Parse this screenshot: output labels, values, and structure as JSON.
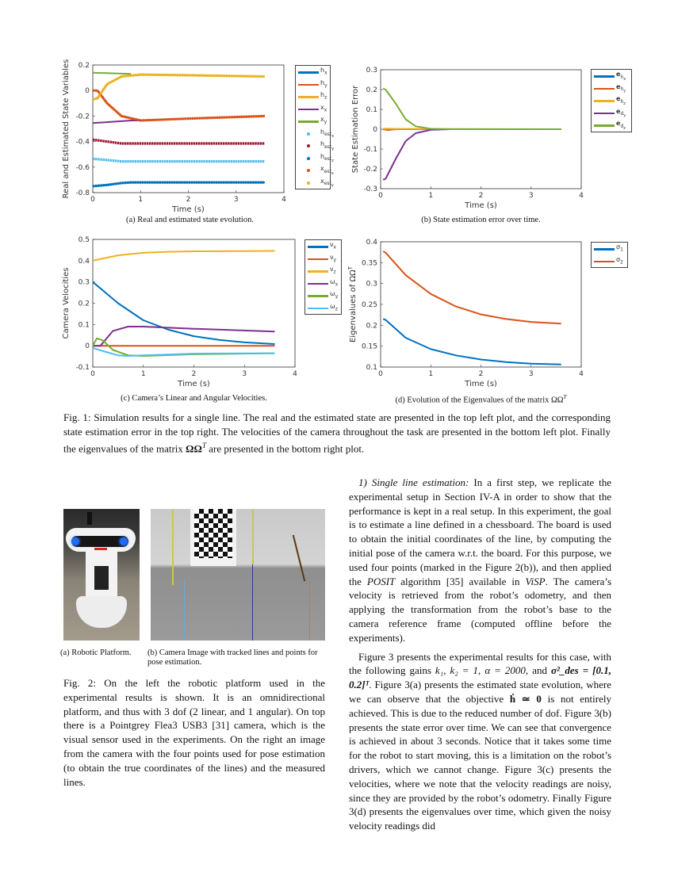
{
  "chart_data": [
    {
      "id": "a",
      "type": "line",
      "xlabel": "Time (s)",
      "ylabel": "Real and Estimated State Variables",
      "xlim": [
        0,
        4
      ],
      "ylim": [
        -0.8,
        0.2
      ],
      "xticks": [
        "0",
        "1",
        "2",
        "3",
        "4"
      ],
      "yticks": [
        "-0.8",
        "-0.6",
        "-0.4",
        "-0.2",
        "0",
        "0.2"
      ],
      "caption": "(a) Real and estimated state evolution.",
      "legend_placement": "outside-right",
      "series": [
        {
          "base": "h",
          "sub": "x",
          "color": "#0072BD",
          "style": "line",
          "points": [
            [
              0,
              -0.75
            ],
            [
              0.3,
              -0.74
            ],
            [
              0.6,
              -0.725
            ],
            [
              0.8,
              -0.72
            ],
            [
              3.6,
              -0.72
            ]
          ]
        },
        {
          "base": "h",
          "sub": "y",
          "color": "#D95319",
          "style": "line",
          "points": [
            [
              0,
              0.0
            ],
            [
              0.1,
              0.0
            ],
            [
              0.3,
              -0.1
            ],
            [
              0.6,
              -0.2
            ],
            [
              1.0,
              -0.235
            ],
            [
              2.0,
              -0.22
            ],
            [
              3.6,
              -0.2
            ]
          ]
        },
        {
          "base": "h",
          "sub": "z",
          "color": "#EDB120",
          "style": "line",
          "points": [
            [
              0,
              -0.07
            ],
            [
              0.1,
              -0.06
            ],
            [
              0.3,
              0.05
            ],
            [
              0.6,
              0.11
            ],
            [
              1.0,
              0.125
            ],
            [
              2.0,
              0.12
            ],
            [
              3.6,
              0.11
            ]
          ]
        },
        {
          "base": "x",
          "sub": "x",
          "color": "#7E2F8E",
          "style": "line",
          "points": [
            [
              0,
              -0.255
            ],
            [
              0.8,
              -0.235
            ],
            [
              1.0,
              -0.235
            ]
          ]
        },
        {
          "base": "x",
          "sub": "y",
          "color": "#77AC30",
          "style": "line",
          "points": [
            [
              0,
              0.14
            ],
            [
              0.8,
              0.13
            ]
          ]
        },
        {
          "base": "h",
          "sub": "est",
          "subsub": "x",
          "color": "#4DBEEE",
          "style": "marker",
          "points": [
            [
              0,
              -0.535
            ],
            [
              0.3,
              -0.545
            ],
            [
              0.6,
              -0.555
            ],
            [
              3.6,
              -0.555
            ]
          ]
        },
        {
          "base": "h",
          "sub": "est",
          "subsub": "y",
          "color": "#A2142F",
          "style": "marker",
          "points": [
            [
              0,
              -0.385
            ],
            [
              0.3,
              -0.4
            ],
            [
              0.6,
              -0.415
            ],
            [
              3.6,
              -0.415
            ]
          ]
        },
        {
          "base": "h",
          "sub": "est",
          "subsub": "z",
          "color": "#0072BD",
          "style": "marker",
          "points": [
            [
              0,
              -0.75
            ],
            [
              0.3,
              -0.74
            ],
            [
              0.6,
              -0.725
            ],
            [
              0.8,
              -0.72
            ],
            [
              3.6,
              -0.72
            ]
          ]
        },
        {
          "base": "x",
          "sub": "est",
          "subsub": "x",
          "color": "#D95319",
          "style": "marker",
          "points": [
            [
              0,
              0.0
            ],
            [
              0.1,
              0.0
            ],
            [
              0.3,
              -0.1
            ],
            [
              0.6,
              -0.2
            ],
            [
              1.0,
              -0.235
            ],
            [
              2.0,
              -0.22
            ],
            [
              3.6,
              -0.2
            ]
          ]
        },
        {
          "base": "x",
          "sub": "est",
          "subsub": "y",
          "color": "#EDB120",
          "style": "marker",
          "points": [
            [
              0,
              -0.07
            ],
            [
              0.1,
              -0.06
            ],
            [
              0.3,
              0.05
            ],
            [
              0.6,
              0.11
            ],
            [
              1.0,
              0.125
            ],
            [
              2.0,
              0.12
            ],
            [
              3.6,
              0.11
            ]
          ]
        }
      ]
    },
    {
      "id": "b",
      "type": "line",
      "xlabel": "Time (s)",
      "ylabel": "State Estimation Error",
      "xlim": [
        0,
        4
      ],
      "ylim": [
        -0.3,
        0.3
      ],
      "xticks": [
        "0",
        "1",
        "2",
        "3",
        "4"
      ],
      "yticks": [
        "-0.3",
        "-0.2",
        "-0.1",
        "0",
        "0.1",
        "0.2",
        "0.3"
      ],
      "caption": "(b) State estimation error over time.",
      "legend_placement": "outside-right",
      "series": [
        {
          "base": "e",
          "sub": "h",
          "subsub": "x",
          "bold": true,
          "color": "#0072BD",
          "style": "line",
          "points": [
            [
              0.05,
              0
            ],
            [
              3.6,
              0
            ]
          ]
        },
        {
          "base": "e",
          "sub": "h",
          "subsub": "y",
          "bold": true,
          "color": "#D95319",
          "style": "line",
          "points": [
            [
              0.05,
              0
            ],
            [
              0.15,
              -0.004
            ],
            [
              0.3,
              0
            ],
            [
              3.6,
              0
            ]
          ]
        },
        {
          "base": "e",
          "sub": "h",
          "subsub": "z",
          "bold": true,
          "color": "#EDB120",
          "style": "line",
          "points": [
            [
              0.05,
              0.003
            ],
            [
              0.3,
              0.002
            ],
            [
              3.6,
              0
            ]
          ]
        },
        {
          "base": "e",
          "sub": "d",
          "subsub": "y",
          "bold": true,
          "color": "#7E2F8E",
          "style": "line",
          "points": [
            [
              0.05,
              -0.255
            ],
            [
              0.1,
              -0.25
            ],
            [
              0.3,
              -0.15
            ],
            [
              0.5,
              -0.06
            ],
            [
              0.7,
              -0.02
            ],
            [
              1.0,
              -0.003
            ],
            [
              1.4,
              0
            ],
            [
              3.6,
              0
            ]
          ]
        },
        {
          "base": "e",
          "sub": "d",
          "subsub": "z",
          "bold": true,
          "color": "#77AC30",
          "style": "line",
          "points": [
            [
              0.05,
              0.205
            ],
            [
              0.1,
              0.2
            ],
            [
              0.3,
              0.13
            ],
            [
              0.5,
              0.05
            ],
            [
              0.7,
              0.015
            ],
            [
              1.0,
              0.002
            ],
            [
              1.4,
              0
            ],
            [
              3.6,
              0
            ]
          ]
        }
      ]
    },
    {
      "id": "c",
      "type": "line",
      "xlabel": "Time (s)",
      "ylabel": "Camera Velocities",
      "xlim": [
        0,
        4
      ],
      "ylim": [
        -0.1,
        0.5
      ],
      "xticks": [
        "0",
        "1",
        "2",
        "3",
        "4"
      ],
      "yticks": [
        "-0.1",
        "0",
        "0.1",
        "0.2",
        "0.3",
        "0.4",
        "0.5"
      ],
      "caption": "(c) Camera’s Linear and Angular Velocities.",
      "legend_placement": "outside-right",
      "series": [
        {
          "base": "ν",
          "sub": "x",
          "color": "#0072BD",
          "style": "line",
          "points": [
            [
              0,
              0.3
            ],
            [
              0.5,
              0.2
            ],
            [
              1.0,
              0.12
            ],
            [
              1.5,
              0.075
            ],
            [
              2.0,
              0.045
            ],
            [
              2.5,
              0.028
            ],
            [
              3.0,
              0.016
            ],
            [
              3.6,
              0.008
            ]
          ]
        },
        {
          "base": "ν",
          "sub": "y",
          "color": "#D95319",
          "style": "line",
          "points": [
            [
              0,
              0
            ],
            [
              3.6,
              0
            ]
          ]
        },
        {
          "base": "ν",
          "sub": "z",
          "color": "#EDB120",
          "style": "line",
          "points": [
            [
              0,
              0.4
            ],
            [
              0.5,
              0.425
            ],
            [
              1.0,
              0.437
            ],
            [
              1.5,
              0.442
            ],
            [
              2.0,
              0.444
            ],
            [
              3.6,
              0.446
            ]
          ]
        },
        {
          "base": "ω",
          "sub": "x",
          "color": "#7E2F8E",
          "style": "line",
          "points": [
            [
              0,
              0
            ],
            [
              0.15,
              0
            ],
            [
              0.4,
              0.07
            ],
            [
              0.7,
              0.09
            ],
            [
              1.0,
              0.09
            ],
            [
              2.0,
              0.08
            ],
            [
              3.6,
              0.067
            ]
          ]
        },
        {
          "base": "ω",
          "sub": "y",
          "color": "#77AC30",
          "style": "line",
          "points": [
            [
              0,
              0
            ],
            [
              0.08,
              0.035
            ],
            [
              0.2,
              0.025
            ],
            [
              0.4,
              -0.02
            ],
            [
              0.7,
              -0.045
            ],
            [
              1.0,
              -0.048
            ],
            [
              2.0,
              -0.04
            ],
            [
              3.6,
              -0.035
            ]
          ]
        },
        {
          "base": "ω",
          "sub": "z",
          "color": "#4DBEEE",
          "style": "line",
          "points": [
            [
              0,
              -0.01
            ],
            [
              0.2,
              -0.025
            ],
            [
              0.5,
              -0.045
            ],
            [
              0.7,
              -0.048
            ],
            [
              1.0,
              -0.045
            ],
            [
              2.0,
              -0.037
            ],
            [
              3.6,
              -0.035
            ]
          ]
        }
      ]
    },
    {
      "id": "d",
      "type": "line",
      "xlabel": "Time (s)",
      "ylabel": "Eigenvalues of ΩΩ",
      "ylabel_sup": "T",
      "xlim": [
        0,
        4
      ],
      "ylim": [
        0.1,
        0.4
      ],
      "xticks": [
        "0",
        "1",
        "2",
        "3",
        "4"
      ],
      "yticks": [
        "0.1",
        "0.15",
        "0.2",
        "0.25",
        "0.3",
        "0.35",
        "0.4"
      ],
      "caption": "(d) Evolution of the Eigenvalues of the matrix ΩΩ",
      "caption_sup": "T",
      "legend_placement": "outside-right",
      "series": [
        {
          "base": "σ",
          "sub": "1",
          "color": "#0072BD",
          "style": "line",
          "points": [
            [
              0.05,
              0.215
            ],
            [
              0.1,
              0.213
            ],
            [
              0.5,
              0.17
            ],
            [
              1.0,
              0.143
            ],
            [
              1.5,
              0.128
            ],
            [
              2.0,
              0.118
            ],
            [
              2.5,
              0.112
            ],
            [
              3.0,
              0.108
            ],
            [
              3.6,
              0.106
            ]
          ]
        },
        {
          "base": "σ",
          "sub": "2",
          "color": "#D95319",
          "style": "line",
          "points": [
            [
              0.05,
              0.377
            ],
            [
              0.1,
              0.374
            ],
            [
              0.5,
              0.32
            ],
            [
              1.0,
              0.275
            ],
            [
              1.5,
              0.245
            ],
            [
              2.0,
              0.226
            ],
            [
              2.5,
              0.215
            ],
            [
              3.0,
              0.208
            ],
            [
              3.6,
              0.204
            ]
          ]
        }
      ]
    }
  ],
  "fig1": {
    "caption": "Fig. 1: Simulation results for a single line. The real and the estimated state are presented in the top left plot, and the corresponding state estimation error in the top right. The velocities of the camera throughout the task are presented in the bottom left plot. Finally the eigenvalues of the matrix ",
    "caption_math": "ΩΩ",
    "caption_sup": "T",
    "caption_end": " are presented in the bottom right plot."
  },
  "fig2": {
    "sub_a": "(a) Robotic Platform.",
    "sub_b": "(b) Camera Image with tracked lines and points for pose estimation.",
    "caption": "Fig. 2: On the left the robotic platform used in the experimental results is shown. It is an omnidirectional platform, and thus with 3 dof (2 linear, and 1 angular). On top there is a Pointgrey Flea3 USB3 [31] camera, which is the visual sensor used in the experiments. On the right an image from the camera with the four points used for pose estimation (to obtain the true coordinates of the lines) and the measured lines."
  },
  "body": {
    "p1_heading": "1) Single line estimation:",
    "p1_a": " In a first step, we replicate the experimental setup in Section IV-A in order to show that the performance is kept in a real setup. In this experiment, the goal is to estimate a line defined in a chessboard. The board is used to obtain the initial coordinates of the line, by computing the initial pose of the camera w.r.t. the board. For this purpose, we used four points (marked in the Figure 2(b)), and then applied the ",
    "p1_posit": "POSIT",
    "p1_b": " algorithm [35] available in ",
    "p1_visp": "ViSP",
    "p1_c": ". The camera’s velocity is retrieved from the robot’s odometry, and then applying the transformation from the robot’s base to the camera reference frame (computed offline before the experiments).",
    "p2_a": "Figure 3 presents the experimental results for this case, with the following gains ",
    "p2_gains": "k₁, k₂ = 1, α = 2000,",
    "p2_b": " and ",
    "p2_sigma": "σ²_des = [0.1, 0.2]ᵀ",
    "p2_c": ". Figure 3(a) presents the estimated state evolution, where we can observe that the objective ",
    "p2_obj": "ḣ ≃ 0",
    "p2_d": " is not entirely achieved. This is due to the reduced number of dof. Figure 3(b) presents the state error over time. We can see that convergence is achieved in about 3 seconds. Notice that it takes some time for the robot to start moving, this is a limitation on the robot’s drivers, which we cannot change. Figure 3(c) presents the velocities, where we note that the velocity readings are noisy, since they are provided by the robot’s odometry. Finally Figure 3(d) presents the eigenvalues over time, which given the noisy velocity readings did"
  }
}
